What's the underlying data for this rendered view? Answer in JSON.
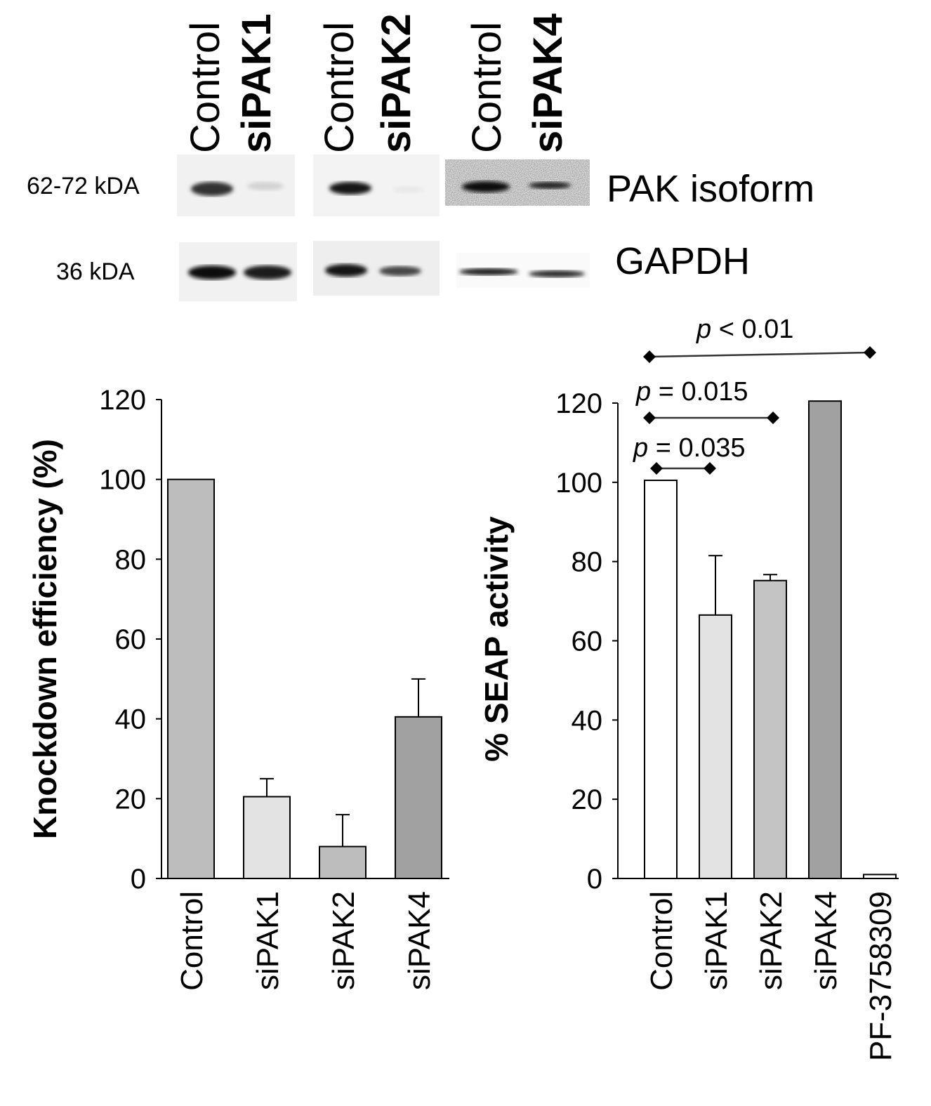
{
  "blot": {
    "lane_labels": [
      "Control",
      "siPAK1",
      "Control",
      "siPAK2",
      "Control",
      "siPAK4"
    ],
    "row1_size": "62-72 kDA",
    "row2_size": "36 kDA",
    "row1_name": "PAK isoform",
    "row2_name": "GAPDH"
  },
  "chart_data": [
    {
      "type": "bar",
      "categories": [
        "Control",
        "siPAK1",
        "siPAK2",
        "siPAK4"
      ],
      "values": [
        100,
        20.5,
        8,
        40.5
      ],
      "errors": [
        null,
        4.5,
        8,
        9.5
      ],
      "colors": [
        "#bdbdbd",
        "#e3e3e3",
        "#bdbdbd",
        "#a1a1a1"
      ],
      "title": "",
      "xlabel": "",
      "ylabel": "Knockdown efficiency (%)",
      "ylim": [
        0,
        120
      ],
      "yticks": [
        0,
        20,
        40,
        60,
        80,
        100,
        120
      ],
      "grid": false
    },
    {
      "type": "bar",
      "categories": [
        "Control",
        "siPAK1",
        "siPAK2",
        "siPAK4",
        "PF-3758309"
      ],
      "values": [
        100.5,
        66.5,
        75.2,
        120.5,
        1
      ],
      "errors": [
        null,
        15,
        1.5,
        null,
        null
      ],
      "colors": [
        "#ffffff",
        "#e3e3e3",
        "#c4c4c4",
        "#a1a1a1",
        "#ffffff"
      ],
      "title": "",
      "xlabel": "",
      "ylabel": "% SEAP activity",
      "ylim": [
        0,
        120
      ],
      "yticks": [
        0,
        20,
        40,
        60,
        80,
        100,
        120
      ],
      "grid": false,
      "annotations": [
        {
          "p": "p",
          "rest": " = 0.035",
          "from": "Control",
          "to": "siPAK1"
        },
        {
          "p": "p",
          "rest": " = 0.015",
          "from": "Control",
          "to": "siPAK2"
        },
        {
          "p": "p",
          "rest": " < 0.01",
          "from": "Control",
          "to": "PF-3758309"
        }
      ]
    }
  ]
}
